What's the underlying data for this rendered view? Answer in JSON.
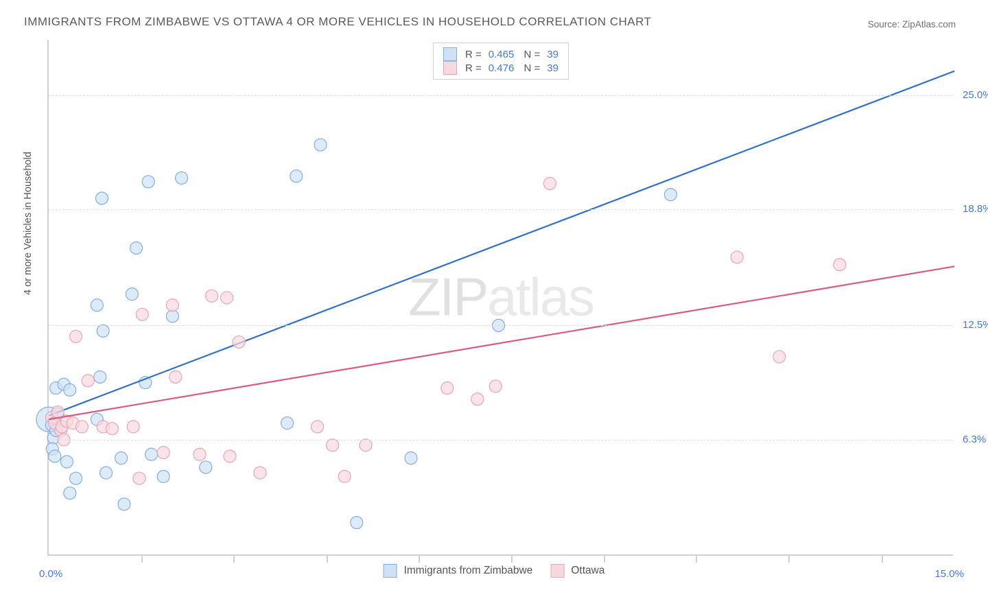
{
  "title": "IMMIGRANTS FROM ZIMBABWE VS OTTAWA 4 OR MORE VEHICLES IN HOUSEHOLD CORRELATION CHART",
  "source": "Source: ZipAtlas.com",
  "ylabel": "4 or more Vehicles in Household",
  "watermark": "ZIPatlas",
  "chart": {
    "type": "scatter",
    "background_color": "#ffffff",
    "grid_color": "#dfdfdf",
    "axis_color": "#d0d0d0",
    "text_color": "#555555",
    "value_color": "#4678d8",
    "title_fontsize": 17,
    "label_fontsize": 14.5,
    "xlim": [
      0,
      15
    ],
    "ylim": [
      0,
      28
    ],
    "x_axis_min_label": "0.0%",
    "x_axis_max_label": "15.0%",
    "y_ticks": [
      {
        "v": 6.3,
        "label": "6.3%"
      },
      {
        "v": 12.5,
        "label": "12.5%"
      },
      {
        "v": 18.8,
        "label": "18.8%"
      },
      {
        "v": 25.0,
        "label": "25.0%"
      }
    ],
    "x_tick_positions": [
      1.53,
      3.06,
      4.6,
      6.13,
      7.66,
      9.19,
      10.72,
      12.25,
      13.79
    ],
    "marker_radius": 9,
    "marker_stroke_width": 1.2,
    "line_width": 2.2,
    "series": [
      {
        "name": "Immigrants from Zimbabwe",
        "fill": "#cfe1f4",
        "stroke": "#84aee2",
        "line_color": "#2f6fd0",
        "R": "0.465",
        "N": "39",
        "trend": {
          "x1": 0,
          "y1": 7.6,
          "x2": 15,
          "y2": 26.3
        },
        "points": [
          {
            "x": 0.0,
            "y": 7.4,
            "r": 18
          },
          {
            "x": 0.05,
            "y": 7.1
          },
          {
            "x": 0.08,
            "y": 6.4
          },
          {
            "x": 0.06,
            "y": 5.8
          },
          {
            "x": 0.1,
            "y": 5.4
          },
          {
            "x": 0.12,
            "y": 6.8
          },
          {
            "x": 0.15,
            "y": 7.7
          },
          {
            "x": 0.12,
            "y": 9.1
          },
          {
            "x": 0.25,
            "y": 9.3
          },
          {
            "x": 0.35,
            "y": 9.0
          },
          {
            "x": 0.3,
            "y": 5.1
          },
          {
            "x": 0.35,
            "y": 3.4
          },
          {
            "x": 0.45,
            "y": 4.2
          },
          {
            "x": 0.8,
            "y": 13.6
          },
          {
            "x": 0.8,
            "y": 7.4
          },
          {
            "x": 0.85,
            "y": 9.7
          },
          {
            "x": 0.88,
            "y": 19.4
          },
          {
            "x": 0.9,
            "y": 12.2
          },
          {
            "x": 0.95,
            "y": 4.5
          },
          {
            "x": 1.2,
            "y": 5.3
          },
          {
            "x": 1.25,
            "y": 2.8
          },
          {
            "x": 1.38,
            "y": 14.2
          },
          {
            "x": 1.45,
            "y": 16.7
          },
          {
            "x": 1.6,
            "y": 9.4
          },
          {
            "x": 1.65,
            "y": 20.3
          },
          {
            "x": 1.7,
            "y": 5.5
          },
          {
            "x": 1.9,
            "y": 4.3
          },
          {
            "x": 2.05,
            "y": 13.0
          },
          {
            "x": 2.2,
            "y": 20.5
          },
          {
            "x": 2.6,
            "y": 4.8
          },
          {
            "x": 3.95,
            "y": 7.2
          },
          {
            "x": 4.1,
            "y": 20.6
          },
          {
            "x": 4.5,
            "y": 22.3
          },
          {
            "x": 5.1,
            "y": 1.8
          },
          {
            "x": 6.0,
            "y": 5.3
          },
          {
            "x": 7.45,
            "y": 12.5
          },
          {
            "x": 10.3,
            "y": 19.6
          }
        ]
      },
      {
        "name": "Ottawa",
        "fill": "#f6d9df",
        "stroke": "#e7a5b5",
        "line_color": "#db5a7d",
        "R": "0.476",
        "N": "39",
        "trend": {
          "x1": 0,
          "y1": 7.4,
          "x2": 15,
          "y2": 15.7
        },
        "points": [
          {
            "x": 0.05,
            "y": 7.5
          },
          {
            "x": 0.1,
            "y": 7.2
          },
          {
            "x": 0.15,
            "y": 7.8
          },
          {
            "x": 0.2,
            "y": 6.8
          },
          {
            "x": 0.22,
            "y": 7.0
          },
          {
            "x": 0.25,
            "y": 6.3
          },
          {
            "x": 0.3,
            "y": 7.3
          },
          {
            "x": 0.4,
            "y": 7.2
          },
          {
            "x": 0.45,
            "y": 11.9
          },
          {
            "x": 0.55,
            "y": 7.0
          },
          {
            "x": 0.65,
            "y": 9.5
          },
          {
            "x": 0.9,
            "y": 7.0
          },
          {
            "x": 1.05,
            "y": 6.9
          },
          {
            "x": 1.4,
            "y": 7.0
          },
          {
            "x": 1.5,
            "y": 4.2
          },
          {
            "x": 1.55,
            "y": 13.1
          },
          {
            "x": 1.9,
            "y": 5.6
          },
          {
            "x": 2.05,
            "y": 13.6
          },
          {
            "x": 2.1,
            "y": 9.7
          },
          {
            "x": 2.5,
            "y": 5.5
          },
          {
            "x": 2.7,
            "y": 14.1
          },
          {
            "x": 2.95,
            "y": 14.0
          },
          {
            "x": 3.0,
            "y": 5.4
          },
          {
            "x": 3.15,
            "y": 11.6
          },
          {
            "x": 3.5,
            "y": 4.5
          },
          {
            "x": 4.45,
            "y": 7.0
          },
          {
            "x": 4.7,
            "y": 6.0
          },
          {
            "x": 4.9,
            "y": 4.3
          },
          {
            "x": 5.25,
            "y": 6.0
          },
          {
            "x": 6.6,
            "y": 9.1
          },
          {
            "x": 7.1,
            "y": 8.5
          },
          {
            "x": 7.4,
            "y": 9.2
          },
          {
            "x": 8.3,
            "y": 20.2
          },
          {
            "x": 11.4,
            "y": 16.2
          },
          {
            "x": 12.1,
            "y": 10.8
          },
          {
            "x": 13.1,
            "y": 15.8
          }
        ]
      }
    ]
  }
}
